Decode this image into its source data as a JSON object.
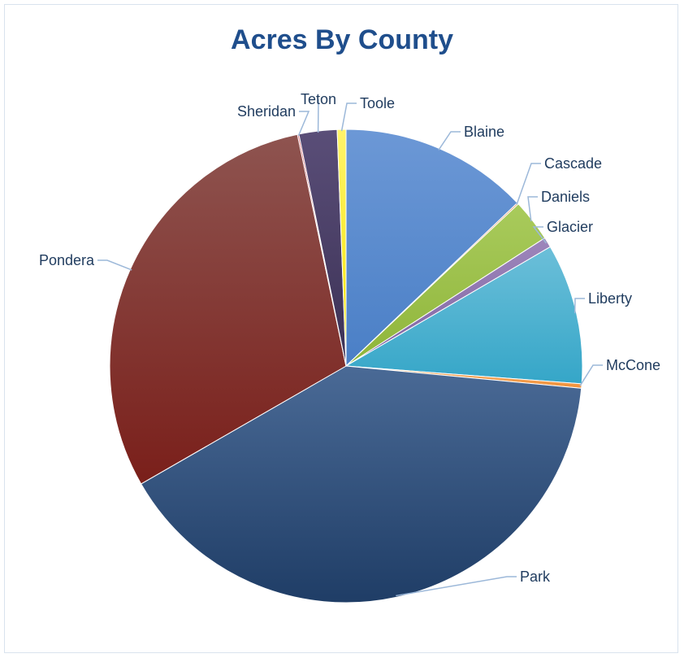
{
  "chart_data": {
    "type": "pie",
    "title": "Acres By County",
    "slices": [
      {
        "label": "Blaine",
        "value": 12.9,
        "color": "#4a7fc6",
        "color2": "#6c98d6"
      },
      {
        "label": "Cascade",
        "value": 0.1,
        "color": "#d07a3b",
        "color2": "#e39a60"
      },
      {
        "label": "Daniels",
        "value": 2.9,
        "color": "#8fb53a",
        "color2": "#a9cb5c"
      },
      {
        "label": "Glacier",
        "value": 0.7,
        "color": "#8064a2",
        "color2": "#9d86bb"
      },
      {
        "label": "Liberty",
        "value": 9.6,
        "color": "#35a6c8",
        "color2": "#6cbfd9"
      },
      {
        "label": "McCone",
        "value": 0.3,
        "color": "#f0913a",
        "color2": "#f6ad66"
      },
      {
        "label": "Park",
        "value": 40.2,
        "color": "#1f3d66",
        "color2": "#4a6a96"
      },
      {
        "label": "Pondera",
        "value": 30.0,
        "color": "#7a1f1a",
        "color2": "#8e5450"
      },
      {
        "label": "Sheridan",
        "value": 0.1,
        "color": "#c0313d",
        "color2": "#d65a64"
      },
      {
        "label": "Teton",
        "value": 2.6,
        "color": "#3b3155",
        "color2": "#5a4e78"
      },
      {
        "label": "Toole",
        "value": 0.6,
        "color": "#f5e500",
        "color2": "#fff36b"
      }
    ],
    "legend": "none",
    "label_line_color": "#9cb8d9"
  }
}
